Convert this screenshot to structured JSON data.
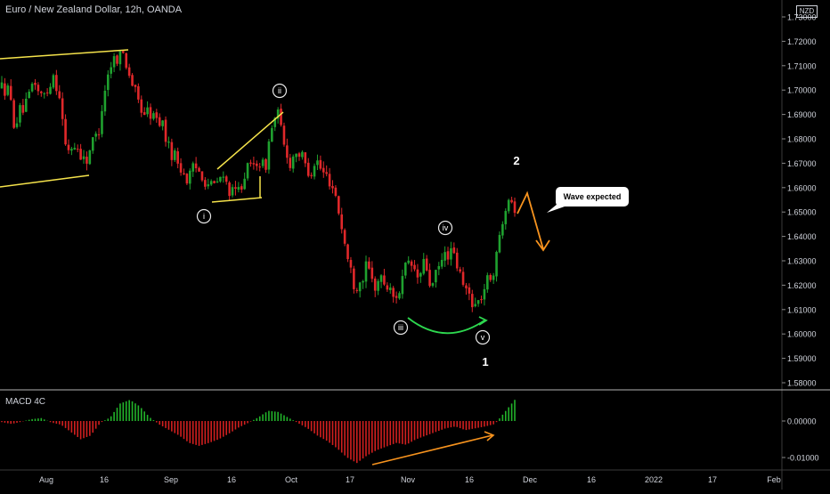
{
  "header": {
    "title": "Euro / New Zealand Dollar, 12h, OANDA",
    "currency": "NZD"
  },
  "colors": {
    "bull": "#1fa12f",
    "bear": "#e0282a",
    "macd_pos": "#22b32a",
    "macd_neg": "#d11f1f",
    "trendline": "#f5e34b",
    "arc": "#2dd84f",
    "arrow": "#f7931e",
    "axis_text": "#d1d4dc",
    "separator": "#b5b5b5"
  },
  "annotations": {
    "wave_labels": [
      "i",
      "ii",
      "iii",
      "iv",
      "v"
    ],
    "degree_labels": [
      "1",
      "2"
    ],
    "callout": "Wave expected"
  },
  "chart_data": [
    {
      "type": "candlestick",
      "title": "Euro / New Zealand Dollar, 12h, OANDA",
      "ylabel": "NZD",
      "ylim": [
        1.575,
        1.732
      ],
      "y_ticks": [
        "1.73000",
        "1.72000",
        "1.71000",
        "1.70000",
        "1.69000",
        "1.68000",
        "1.67000",
        "1.66000",
        "1.65000",
        "1.64000",
        "1.63000",
        "1.62000",
        "1.61000",
        "1.60000",
        "1.59000",
        "1.58000"
      ],
      "x_ticks": [
        "Aug",
        "16",
        "Sep",
        "16",
        "Oct",
        "17",
        "Nov",
        "16",
        "Dec",
        "16",
        "2022",
        "17",
        "Feb"
      ],
      "close_path": [
        1.701,
        1.7,
        1.686,
        1.692,
        1.694,
        1.705,
        1.697,
        1.699,
        1.707,
        1.698,
        1.675,
        1.677,
        1.676,
        1.67,
        1.678,
        1.682,
        1.7,
        1.711,
        1.714,
        1.715,
        1.706,
        1.697,
        1.691,
        1.691,
        1.688,
        1.687,
        1.676,
        1.673,
        1.668,
        1.663,
        1.668,
        1.667,
        1.662,
        1.66,
        1.664,
        1.662,
        1.657,
        1.659,
        1.667,
        1.668,
        1.672,
        1.667,
        1.684,
        1.691,
        1.677,
        1.67,
        1.676,
        1.671,
        1.666,
        1.672,
        1.666,
        1.664,
        1.658,
        1.644,
        1.63,
        1.62,
        1.622,
        1.628,
        1.619,
        1.623,
        1.62,
        1.615,
        1.618,
        1.627,
        1.628,
        1.622,
        1.63,
        1.618,
        1.626,
        1.632,
        1.634,
        1.628,
        1.619,
        1.616,
        1.611,
        1.617,
        1.623,
        1.628,
        1.647,
        1.658,
        1.652
      ],
      "volatility": 0.0032
    },
    {
      "type": "histogram",
      "title": "MACD 4C",
      "ylim": [
        -0.0135,
        0.0063
      ],
      "y_ticks": [
        "0.00000",
        "-0.01000"
      ],
      "values_path": [
        -0.0003,
        -0.0008,
        -0.0002,
        0.0005,
        0.0008,
        -0.0004,
        -0.001,
        -0.003,
        -0.005,
        -0.004,
        -0.0005,
        0.001,
        0.0048,
        0.0058,
        0.004,
        0.001,
        -0.001,
        -0.0025,
        -0.004,
        -0.006,
        -0.0068,
        -0.006,
        -0.005,
        -0.0035,
        -0.0018,
        -0.0005,
        0.001,
        0.0028,
        0.0025,
        0.001,
        -0.0005,
        -0.002,
        -0.004,
        -0.0055,
        -0.0075,
        -0.01,
        -0.0115,
        -0.0095,
        -0.008,
        -0.007,
        -0.006,
        -0.0065,
        -0.005,
        -0.004,
        -0.003,
        -0.002,
        -0.0015,
        -0.0025,
        -0.002,
        -0.0015,
        -0.0008,
        0.0025,
        0.0058
      ]
    }
  ]
}
